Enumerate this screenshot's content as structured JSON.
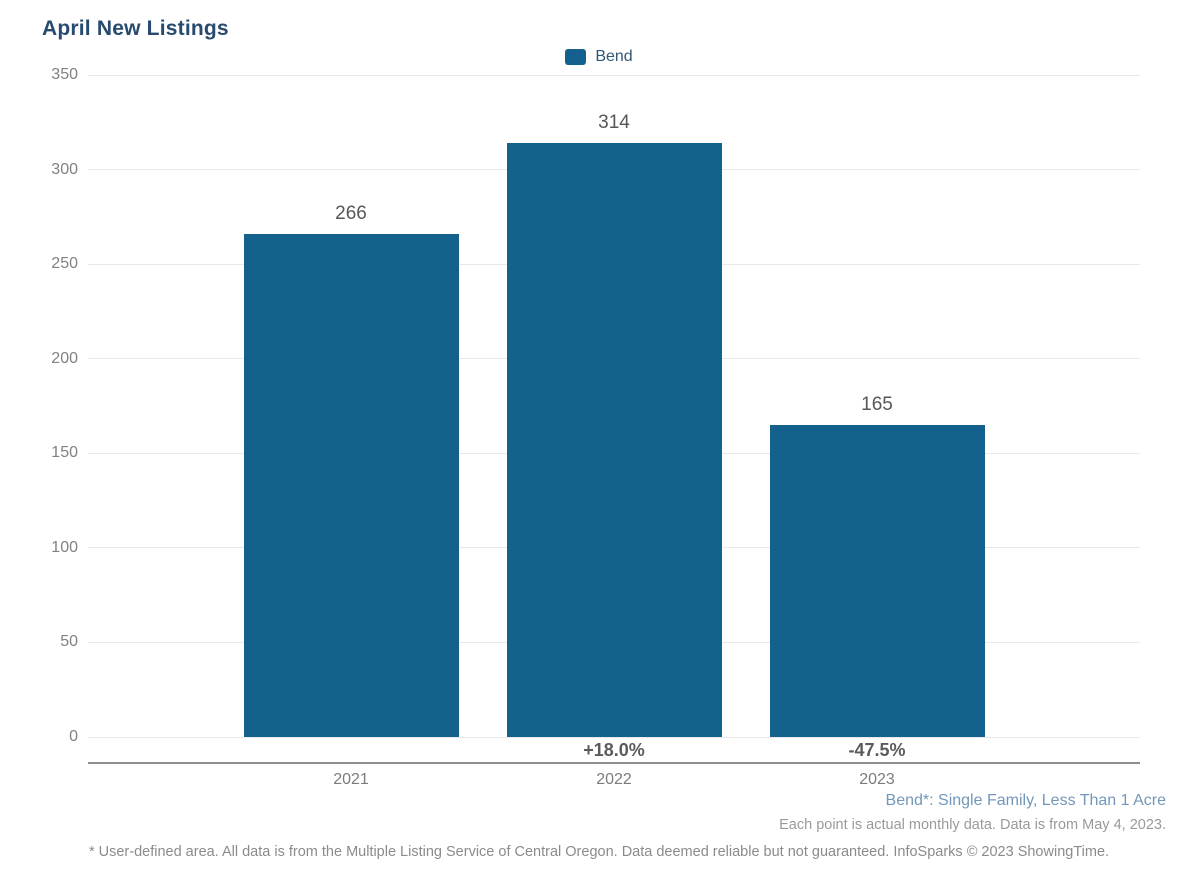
{
  "page": {
    "title": "April New Listings"
  },
  "legend": {
    "label": "Bend"
  },
  "chart_data": {
    "type": "bar",
    "title": "April New Listings",
    "categories": [
      "2021",
      "2022",
      "2023"
    ],
    "series": [
      {
        "name": "Bend",
        "values": [
          266,
          314,
          165
        ]
      }
    ],
    "value_labels": [
      "266",
      "314",
      "165"
    ],
    "pct_change_labels": [
      "",
      "+18.0%",
      "-47.5%"
    ],
    "y_ticks": [
      0,
      50,
      100,
      150,
      200,
      250,
      300,
      350
    ],
    "ylim": [
      0,
      350
    ],
    "xlabel": "",
    "ylabel": "",
    "grid": "horizontal",
    "legend_position": "top-center",
    "bar_color": "#15618e"
  },
  "footnotes": {
    "series_note": "Bend*: Single Family, Less Than 1 Acre",
    "data_note": "Each point is actual monthly data. Data is from May 4, 2023.",
    "disclaimer": "* User-defined area. All data is from the Multiple Listing Service of Central Oregon. Data deemed reliable but not guaranteed. InfoSparks © 2023 ShowingTime."
  },
  "colors": {
    "bar": "#15618e",
    "title": "#274a6e",
    "series_note": "#7397ba",
    "gridline": "#e9e9e9",
    "axis_line": "#8e8e8e"
  }
}
